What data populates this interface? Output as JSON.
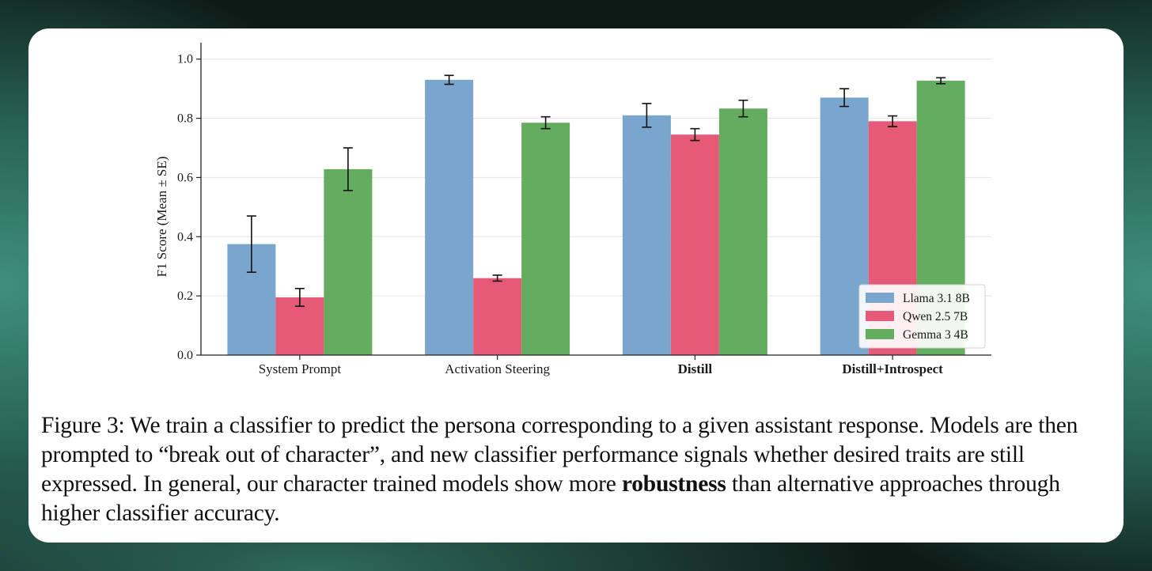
{
  "chart_data": {
    "type": "bar",
    "ylabel": "F1 Score (Mean ± SE)",
    "xlabel": "",
    "ylim": [
      0,
      1.05
    ],
    "yticks": [
      "0.0",
      "0.2",
      "0.4",
      "0.6",
      "0.8",
      "1.0"
    ],
    "ytick_values": [
      0.0,
      0.2,
      0.4,
      0.6,
      0.8,
      1.0
    ],
    "grid": true,
    "categories": [
      "System Prompt",
      "Activation Steering",
      "Distill",
      "Distill+Introspect"
    ],
    "category_bold": [
      false,
      false,
      true,
      true
    ],
    "series": [
      {
        "name": "Llama 3.1 8B",
        "color": "#7aa6cd",
        "values": [
          0.375,
          0.93,
          0.81,
          0.87
        ],
        "errors": [
          0.095,
          0.015,
          0.04,
          0.03
        ]
      },
      {
        "name": "Qwen 2.5 7B",
        "color": "#e55b77",
        "values": [
          0.195,
          0.26,
          0.745,
          0.79
        ],
        "errors": [
          0.03,
          0.01,
          0.02,
          0.018
        ]
      },
      {
        "name": "Gemma 3 4B",
        "color": "#64ad60",
        "values": [
          0.628,
          0.785,
          0.833,
          0.927
        ],
        "errors": [
          0.072,
          0.02,
          0.028,
          0.01
        ]
      }
    ],
    "legend_position": "lower-right"
  },
  "caption": {
    "prefix": "Figure 3: We train a classifier to predict the persona corresponding to a given assistant response. Models are then prompted to “break out of character”, and new classifier performance signals whether desired traits are still expressed. In general, our character trained models show more",
    "bold": "robustness",
    "suffix": " than alternative approaches through higher classifier accuracy."
  }
}
